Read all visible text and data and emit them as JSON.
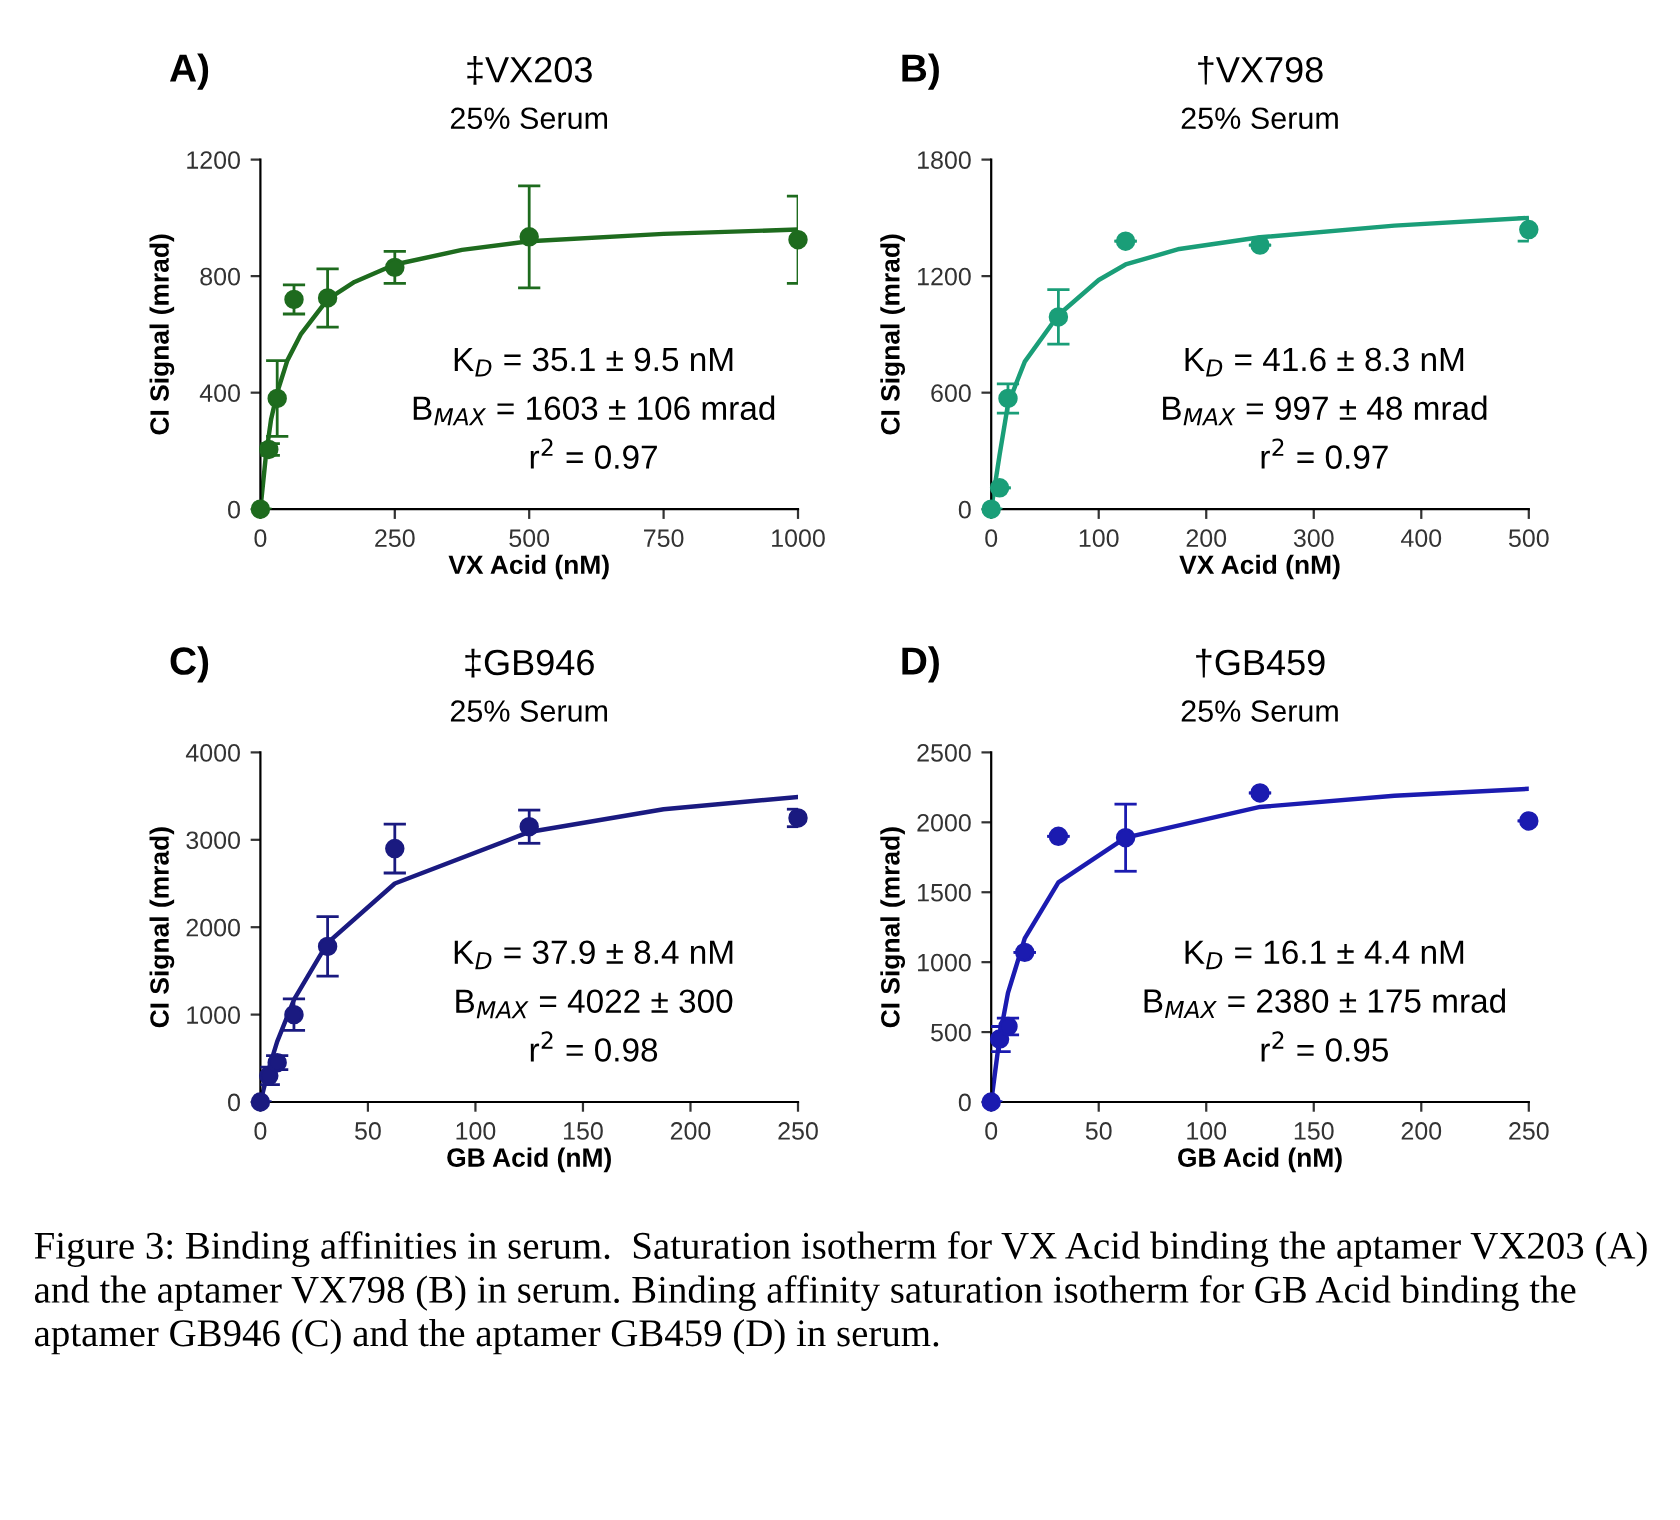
{
  "chart_data": [
    {
      "type": "scatter",
      "title": "‡VX203",
      "subtitle": "25% Serum",
      "xlabel": "VX Acid (nM)",
      "ylabel": "CI Signal (mrad)",
      "xlim": [
        0,
        1000
      ],
      "xticks": [
        0,
        250,
        500,
        750,
        1000
      ],
      "ylim": [
        0,
        1200
      ],
      "yticks": [
        0,
        400,
        800,
        1200
      ],
      "grid": false,
      "legend": false,
      "annotations": [
        "A)",
        "K$_{D}$ = 35.1 ± 9.5 nM",
        "B$_{MAX}$ = 1603 ± 106 mrad",
        "r$^{2}$ = 0.97"
      ],
      "series": [
        {
          "marker": "circle",
          "color": "#1e6b1e",
          "x": [
            0,
            15.6,
            31.25,
            62.5,
            125,
            250,
            500,
            1000
          ],
          "values": [
            0,
            205,
            380,
            720,
            725,
            830,
            935,
            925
          ],
          "errors": [
            null,
            20,
            130,
            50,
            100,
            55,
            175,
            150
          ]
        },
        {
          "type": "line",
          "marker": "none",
          "color": "#1e6b1e",
          "x": [
            0,
            10,
            20,
            31.25,
            50,
            75,
            100,
            125,
            175,
            250,
            375,
            500,
            750,
            1000
          ],
          "values": [
            0,
            180,
            310,
            400,
            510,
            600,
            660,
            720,
            780,
            840,
            890,
            920,
            945,
            960
          ]
        }
      ]
    },
    {
      "type": "scatter",
      "title": "†VX798",
      "subtitle": "25% Serum",
      "xlabel": "VX Acid (nM)",
      "ylabel": "CI Signal (mrad)",
      "xlim": [
        0,
        500
      ],
      "xticks": [
        0,
        100,
        200,
        300,
        400,
        500
      ],
      "ylim": [
        0,
        1800
      ],
      "yticks": [
        0,
        600,
        1200,
        1800
      ],
      "grid": false,
      "legend": false,
      "annotations": [
        "B)",
        "K$_{D}$ = 41.6 ± 8.3 nM",
        "B$_{MAX}$ = 997 ± 48 mrad",
        "r$^{2}$ = 0.97"
      ],
      "series": [
        {
          "marker": "circle",
          "color": "#1a9e78",
          "x": [
            0,
            7.8,
            15.6,
            62.5,
            125,
            250,
            500
          ],
          "values": [
            0,
            110,
            570,
            990,
            1380,
            1360,
            1440
          ],
          "errors": [
            null,
            null,
            75,
            140,
            null,
            null,
            60
          ]
        },
        {
          "type": "line",
          "marker": "none",
          "color": "#1a9e78",
          "x": [
            0,
            7.8,
            15.6,
            31.25,
            62.5,
            100,
            125,
            175,
            250,
            375,
            500
          ],
          "values": [
            0,
            280,
            540,
            760,
            1000,
            1180,
            1260,
            1340,
            1400,
            1460,
            1500
          ]
        }
      ]
    },
    {
      "type": "scatter",
      "title": "‡GB946",
      "subtitle": "25% Serum",
      "xlabel": "GB Acid (nM)",
      "ylabel": "CI Signal (mrad)",
      "xlim": [
        0,
        250
      ],
      "xticks": [
        0,
        50,
        100,
        150,
        200,
        250
      ],
      "ylim": [
        0,
        4000
      ],
      "yticks": [
        0,
        1000,
        2000,
        3000,
        4000
      ],
      "grid": false,
      "legend": false,
      "annotations": [
        "C)",
        "K$_{D}$ = 37.9 ± 8.4 nM",
        "B$_{MAX}$ = 4022 ± 300",
        "r$^{2}$ = 0.98"
      ],
      "series": [
        {
          "marker": "circle",
          "color": "#1a1a80",
          "x": [
            0,
            3.9,
            7.8,
            15.6,
            31.25,
            62.5,
            125,
            250
          ],
          "values": [
            0,
            300,
            450,
            1000,
            1780,
            2900,
            3150,
            3250
          ],
          "errors": [
            null,
            100,
            80,
            180,
            340,
            280,
            190,
            100
          ]
        },
        {
          "type": "line",
          "marker": "none",
          "color": "#1a1a80",
          "x": [
            0,
            3.9,
            7.8,
            15.6,
            31.25,
            62.5,
            125,
            187.5,
            250
          ],
          "values": [
            0,
            380,
            690,
            1170,
            1820,
            2500,
            3090,
            3350,
            3490
          ]
        }
      ]
    },
    {
      "type": "scatter",
      "title": "†GB459",
      "subtitle": "25% Serum",
      "xlabel": "GB Acid (nM)",
      "ylabel": "CI Signal (mrad)",
      "xlim": [
        0,
        250
      ],
      "xticks": [
        0,
        50,
        100,
        150,
        200,
        250
      ],
      "ylim": [
        0,
        2500
      ],
      "yticks": [
        0,
        500,
        1000,
        1500,
        2000,
        2500
      ],
      "grid": false,
      "legend": false,
      "annotations": [
        "D)",
        "K$_{D}$ = 16.1 ± 4.4 nM",
        "B$_{MAX}$ = 2380 ± 175 mrad",
        "r$^{2}$ = 0.95",
        "Figure 3: Binding affinities in serum.  Saturation isotherm for VX Acid binding the aptamer VX203 (A) and the aptamer VX798 (B) in serum. Binding affinity saturation isotherm for GB Acid binding the aptamer GB946 (C) and the aptamer GB459 (D) in serum."
      ],
      "series": [
        {
          "marker": "circle",
          "color": "#1b1bb0",
          "x": [
            0,
            3.9,
            7.8,
            15.6,
            31.25,
            62.5,
            125,
            250
          ],
          "values": [
            0,
            450,
            540,
            1070,
            1900,
            1890,
            2210,
            2010
          ],
          "errors": [
            null,
            90,
            60,
            null,
            null,
            240,
            null,
            null
          ]
        },
        {
          "type": "line",
          "marker": "none",
          "color": "#1b1bb0",
          "x": [
            0,
            3.9,
            7.8,
            15.6,
            31.25,
            62.5,
            125,
            187.5,
            250
          ],
          "values": [
            0,
            460,
            780,
            1170,
            1570,
            1890,
            2110,
            2190,
            2240
          ]
        }
      ]
    }
  ]
}
